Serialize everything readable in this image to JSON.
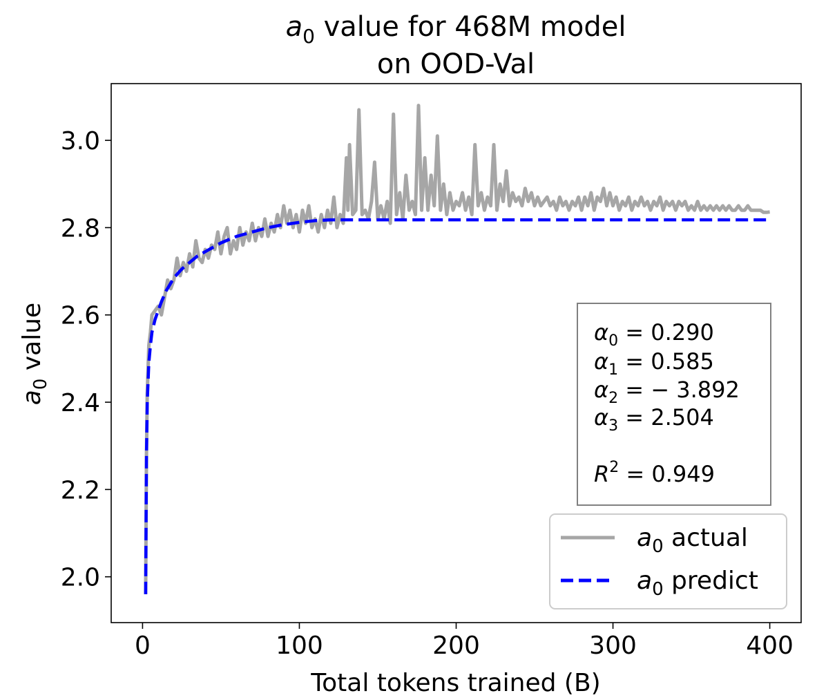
{
  "chart_data": {
    "type": "line",
    "title": {
      "line1_var": "a",
      "line1_sub": "0",
      "line1_rest": " value for 468M model",
      "line2": "on OOD-Val"
    },
    "xlabel": "Total tokens trained (B)",
    "ylabel": {
      "var": "a",
      "sub": "0",
      "rest": " value"
    },
    "xlim": [
      -20,
      420
    ],
    "ylim": [
      1.895,
      3.13
    ],
    "xticks": [
      0,
      100,
      200,
      300,
      400
    ],
    "yticks": [
      2.0,
      2.2,
      2.4,
      2.6,
      2.8,
      3.0
    ],
    "ytick_labels": [
      "2.0",
      "2.2",
      "2.4",
      "2.6",
      "2.8",
      "3.0"
    ],
    "fit_params": {
      "a0": {
        "sym": "α",
        "sub": "0",
        "eq": " = 0.290"
      },
      "a1": {
        "sym": "α",
        "sub": "1",
        "eq": " = 0.585"
      },
      "a2": {
        "sym": "α",
        "sub": "2",
        "eq": " = − 3.892"
      },
      "a3": {
        "sym": "α",
        "sub": "3",
        "eq": " = 2.504"
      },
      "r2": {
        "sym": "R",
        "sup": "2",
        "eq": " = 0.949"
      }
    },
    "legend": {
      "position": "lower-right",
      "entries": [
        {
          "var": "a",
          "sub": "0",
          "rest": " actual",
          "color": "#a6a6a6",
          "style": "solid"
        },
        {
          "var": "a",
          "sub": "0",
          "rest": " predict",
          "color": "#0000ff",
          "style": "dashed"
        }
      ]
    },
    "series": [
      {
        "name": "a0 actual",
        "color": "#a6a6a6",
        "points": [
          [
            2,
            1.96
          ],
          [
            2.5,
            2.28
          ],
          [
            3,
            2.42
          ],
          [
            4,
            2.53
          ],
          [
            5,
            2.56
          ],
          [
            6,
            2.6
          ],
          [
            8,
            2.61
          ],
          [
            10,
            2.62
          ],
          [
            12,
            2.6
          ],
          [
            14,
            2.64
          ],
          [
            16,
            2.68
          ],
          [
            18,
            2.66
          ],
          [
            20,
            2.68
          ],
          [
            22,
            2.73
          ],
          [
            24,
            2.69
          ],
          [
            26,
            2.72
          ],
          [
            28,
            2.7
          ],
          [
            30,
            2.74
          ],
          [
            32,
            2.71
          ],
          [
            34,
            2.77
          ],
          [
            36,
            2.73
          ],
          [
            38,
            2.72
          ],
          [
            40,
            2.75
          ],
          [
            42,
            2.73
          ],
          [
            44,
            2.76
          ],
          [
            46,
            2.75
          ],
          [
            48,
            2.79
          ],
          [
            50,
            2.74
          ],
          [
            52,
            2.78
          ],
          [
            54,
            2.8
          ],
          [
            56,
            2.74
          ],
          [
            58,
            2.77
          ],
          [
            60,
            2.75
          ],
          [
            62,
            2.8
          ],
          [
            64,
            2.76
          ],
          [
            66,
            2.79
          ],
          [
            68,
            2.77
          ],
          [
            70,
            2.81
          ],
          [
            72,
            2.77
          ],
          [
            74,
            2.8
          ],
          [
            76,
            2.78
          ],
          [
            78,
            2.82
          ],
          [
            80,
            2.78
          ],
          [
            82,
            2.81
          ],
          [
            84,
            2.79
          ],
          [
            86,
            2.83
          ],
          [
            88,
            2.8
          ],
          [
            90,
            2.85
          ],
          [
            92,
            2.81
          ],
          [
            94,
            2.84
          ],
          [
            96,
            2.8
          ],
          [
            98,
            2.83
          ],
          [
            100,
            2.79
          ],
          [
            102,
            2.84
          ],
          [
            104,
            2.81
          ],
          [
            106,
            2.85
          ],
          [
            108,
            2.8
          ],
          [
            110,
            2.82
          ],
          [
            112,
            2.79
          ],
          [
            114,
            2.83
          ],
          [
            116,
            2.8
          ],
          [
            118,
            2.84
          ],
          [
            120,
            2.81
          ],
          [
            122,
            2.87
          ],
          [
            124,
            2.8
          ],
          [
            126,
            2.83
          ],
          [
            128,
            2.81
          ],
          [
            130,
            2.96
          ],
          [
            131,
            2.84
          ],
          [
            132,
            2.99
          ],
          [
            134,
            2.83
          ],
          [
            136,
            2.84
          ],
          [
            138,
            3.07
          ],
          [
            140,
            2.83
          ],
          [
            142,
            2.84
          ],
          [
            144,
            2.82
          ],
          [
            146,
            2.86
          ],
          [
            148,
            2.95
          ],
          [
            150,
            2.82
          ],
          [
            152,
            2.85
          ],
          [
            154,
            2.82
          ],
          [
            156,
            2.86
          ],
          [
            158,
            2.81
          ],
          [
            160,
            3.06
          ],
          [
            162,
            2.83
          ],
          [
            164,
            2.88
          ],
          [
            166,
            2.82
          ],
          [
            168,
            2.92
          ],
          [
            170,
            2.84
          ],
          [
            172,
            2.86
          ],
          [
            174,
            2.83
          ],
          [
            176,
            3.08
          ],
          [
            178,
            2.84
          ],
          [
            180,
            2.96
          ],
          [
            182,
            2.84
          ],
          [
            184,
            2.92
          ],
          [
            186,
            2.85
          ],
          [
            188,
            3.01
          ],
          [
            190,
            2.84
          ],
          [
            192,
            2.9
          ],
          [
            194,
            2.83
          ],
          [
            196,
            2.88
          ],
          [
            198,
            2.84
          ],
          [
            200,
            2.86
          ],
          [
            202,
            2.85
          ],
          [
            204,
            2.88
          ],
          [
            206,
            2.84
          ],
          [
            208,
            2.87
          ],
          [
            210,
            2.83
          ],
          [
            212,
            2.99
          ],
          [
            214,
            2.85
          ],
          [
            216,
            2.88
          ],
          [
            218,
            2.84
          ],
          [
            220,
            2.87
          ],
          [
            222,
            2.85
          ],
          [
            224,
            2.99
          ],
          [
            226,
            2.84
          ],
          [
            228,
            2.9
          ],
          [
            230,
            2.86
          ],
          [
            232,
            2.93
          ],
          [
            234,
            2.85
          ],
          [
            236,
            2.88
          ],
          [
            238,
            2.86
          ],
          [
            240,
            2.87
          ],
          [
            242,
            2.85
          ],
          [
            244,
            2.89
          ],
          [
            246,
            2.86
          ],
          [
            248,
            2.88
          ],
          [
            250,
            2.85
          ],
          [
            252,
            2.87
          ],
          [
            254,
            2.85
          ],
          [
            256,
            2.86
          ],
          [
            258,
            2.87
          ],
          [
            260,
            2.85
          ],
          [
            262,
            2.86
          ],
          [
            264,
            2.84
          ],
          [
            266,
            2.87
          ],
          [
            268,
            2.85
          ],
          [
            270,
            2.86
          ],
          [
            272,
            2.84
          ],
          [
            274,
            2.86
          ],
          [
            276,
            2.85
          ],
          [
            278,
            2.87
          ],
          [
            280,
            2.84
          ],
          [
            282,
            2.87
          ],
          [
            284,
            2.85
          ],
          [
            286,
            2.88
          ],
          [
            288,
            2.84
          ],
          [
            290,
            2.87
          ],
          [
            292,
            2.86
          ],
          [
            294,
            2.89
          ],
          [
            296,
            2.85
          ],
          [
            298,
            2.88
          ],
          [
            300,
            2.85
          ],
          [
            302,
            2.87
          ],
          [
            304,
            2.84
          ],
          [
            306,
            2.86
          ],
          [
            308,
            2.85
          ],
          [
            310,
            2.87
          ],
          [
            312,
            2.84
          ],
          [
            314,
            2.86
          ],
          [
            316,
            2.85
          ],
          [
            318,
            2.87
          ],
          [
            320,
            2.85
          ],
          [
            322,
            2.86
          ],
          [
            324,
            2.84
          ],
          [
            326,
            2.86
          ],
          [
            328,
            2.85
          ],
          [
            330,
            2.87
          ],
          [
            332,
            2.84
          ],
          [
            334,
            2.86
          ],
          [
            336,
            2.85
          ],
          [
            338,
            2.86
          ],
          [
            340,
            2.84
          ],
          [
            342,
            2.86
          ],
          [
            344,
            2.85
          ],
          [
            346,
            2.86
          ],
          [
            348,
            2.84
          ],
          [
            350,
            2.85
          ],
          [
            352,
            2.84
          ],
          [
            354,
            2.86
          ],
          [
            356,
            2.84
          ],
          [
            358,
            2.85
          ],
          [
            360,
            2.84
          ],
          [
            362,
            2.85
          ],
          [
            364,
            2.84
          ],
          [
            366,
            2.85
          ],
          [
            368,
            2.84
          ],
          [
            370,
            2.85
          ],
          [
            372,
            2.84
          ],
          [
            374,
            2.85
          ],
          [
            376,
            2.84
          ],
          [
            378,
            2.84
          ],
          [
            380,
            2.85
          ],
          [
            382,
            2.84
          ],
          [
            384,
            2.84
          ],
          [
            386,
            2.85
          ],
          [
            388,
            2.84
          ],
          [
            390,
            2.84
          ],
          [
            392,
            2.84
          ],
          [
            394,
            2.84
          ],
          [
            396,
            2.835
          ],
          [
            398,
            2.835
          ],
          [
            400,
            2.836
          ]
        ]
      },
      {
        "name": "a0 predict",
        "color": "#0000ff",
        "points": [
          [
            2,
            1.96
          ],
          [
            2.5,
            2.28
          ],
          [
            3,
            2.4
          ],
          [
            4,
            2.49
          ],
          [
            5,
            2.53
          ],
          [
            6,
            2.56
          ],
          [
            8,
            2.59
          ],
          [
            10,
            2.61
          ],
          [
            12,
            2.63
          ],
          [
            15,
            2.655
          ],
          [
            20,
            2.685
          ],
          [
            25,
            2.705
          ],
          [
            30,
            2.72
          ],
          [
            35,
            2.735
          ],
          [
            40,
            2.745
          ],
          [
            50,
            2.765
          ],
          [
            60,
            2.78
          ],
          [
            70,
            2.79
          ],
          [
            80,
            2.8
          ],
          [
            90,
            2.807
          ],
          [
            100,
            2.812
          ],
          [
            110,
            2.816
          ],
          [
            120,
            2.818
          ],
          [
            130,
            2.818
          ],
          [
            200,
            2.818
          ],
          [
            300,
            2.818
          ],
          [
            400,
            2.818
          ]
        ]
      }
    ]
  }
}
